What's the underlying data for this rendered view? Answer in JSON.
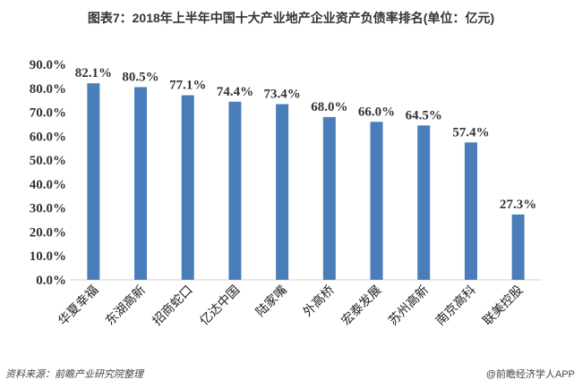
{
  "chart_data": {
    "type": "bar",
    "title": "图表7：2018年上半年中国十大产业地产企业资产负债率排名(单位：亿元)",
    "categories": [
      "华夏幸福",
      "东湖高新",
      "招商蛇口",
      "亿达中国",
      "陆家嘴",
      "外高桥",
      "宏泰发展",
      "苏州高新",
      "南京高科",
      "联美控股"
    ],
    "values": [
      82.1,
      80.5,
      77.1,
      74.4,
      73.4,
      68.0,
      66.0,
      64.5,
      57.4,
      27.3
    ],
    "data_labels": [
      "82.1%",
      "80.5%",
      "77.1%",
      "74.4%",
      "73.4%",
      "68.0%",
      "66.0%",
      "64.5%",
      "57.4%",
      "27.3%"
    ],
    "y_ticks": [
      "0.0%",
      "10.0%",
      "20.0%",
      "30.0%",
      "40.0%",
      "50.0%",
      "60.0%",
      "70.0%",
      "80.0%",
      "90.0%"
    ],
    "ylim": [
      0,
      90
    ],
    "xlabel": "",
    "ylabel": "",
    "grid": false,
    "bar_color": "#4a7ebb"
  },
  "footer": {
    "source": "资料来源：前瞻产业研究院整理",
    "brand": "@前瞻经济学人APP"
  }
}
